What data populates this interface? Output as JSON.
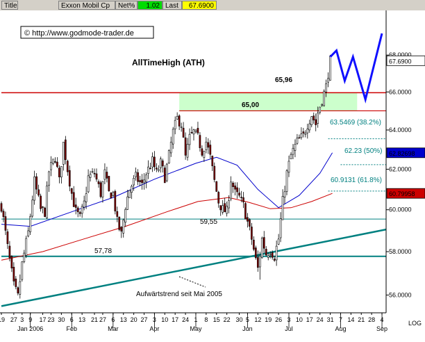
{
  "header": {
    "title_btn": "Title",
    "name": "Exxon Mobil Cp",
    "net_label": "Net%",
    "net_value": "1.02",
    "last_label": "Last",
    "last_value": "67.6900"
  },
  "copyright": "© http://www.godmode-trader.de",
  "annotations": {
    "ath": "AllTimeHigh (ATH)",
    "level_6596": "65,96",
    "level_6500": "65,00",
    "level_5955": "59,55",
    "level_5778": "57,78",
    "trend": "Aufwärtstrend seit Mai 2005",
    "fib382": "63.5469 (38.2%)",
    "fib50": "62.23 (50%)",
    "fib618": "60.9131 (61.8%)"
  },
  "price_tags": {
    "last": "67.6900",
    "blue_ma": "62.82698",
    "red_ma": "60.79958"
  },
  "log_label": "LOG",
  "colors": {
    "candle_body": "#800000",
    "resistance": "#cc0000",
    "zone": "#ccffcc",
    "trendline": "#008080",
    "ma_blue": "#0000cc",
    "ma_red": "#cc0000",
    "projection": "#1010ff",
    "net_green": "#00dd00",
    "last_yellow": "#ffff00"
  },
  "chart_data": {
    "type": "candlestick",
    "scale": "log",
    "ylim": [
      55.2,
      70.5
    ],
    "y_ticks": [
      56,
      58,
      60,
      62,
      64,
      66,
      68
    ],
    "y_tick_labels": [
      "56.0000",
      "58.0000",
      "60.0000",
      "62.0000",
      "64.0000",
      "66.0000",
      "68.0000"
    ],
    "x_ticks": [
      {
        "label": "19",
        "d": 0
      },
      {
        "label": "27",
        "d": 6
      },
      {
        "label": "3",
        "d": 10
      },
      {
        "label": "9",
        "d": 14
      },
      {
        "label": "17",
        "d": 20
      },
      {
        "label": "23",
        "d": 24
      },
      {
        "label": "30",
        "d": 29
      },
      {
        "label": "6",
        "d": 34
      },
      {
        "label": "13",
        "d": 39
      },
      {
        "label": "21",
        "d": 45
      },
      {
        "label": "27",
        "d": 49
      },
      {
        "label": "6",
        "d": 54
      },
      {
        "label": "13",
        "d": 59
      },
      {
        "label": "20",
        "d": 64
      },
      {
        "label": "27",
        "d": 69
      },
      {
        "label": "3",
        "d": 74
      },
      {
        "label": "10",
        "d": 79
      },
      {
        "label": "17",
        "d": 84
      },
      {
        "label": "24",
        "d": 89
      },
      {
        "label": "1",
        "d": 94
      },
      {
        "label": "8",
        "d": 99
      },
      {
        "label": "15",
        "d": 104
      },
      {
        "label": "22",
        "d": 109
      },
      {
        "label": "30",
        "d": 115
      },
      {
        "label": "5",
        "d": 119
      },
      {
        "label": "12",
        "d": 124
      },
      {
        "label": "19",
        "d": 129
      },
      {
        "label": "26",
        "d": 134
      },
      {
        "label": "3",
        "d": 139
      },
      {
        "label": "10",
        "d": 144
      },
      {
        "label": "17",
        "d": 149
      },
      {
        "label": "24",
        "d": 154
      },
      {
        "label": "31",
        "d": 159
      },
      {
        "label": "7",
        "d": 164
      },
      {
        "label": "14",
        "d": 169
      },
      {
        "label": "21",
        "d": 174
      },
      {
        "label": "28",
        "d": 179
      },
      {
        "label": "4",
        "d": 184
      }
    ],
    "months": [
      {
        "label": "Jan 2006",
        "d": 14
      },
      {
        "label": "Feb",
        "d": 34
      },
      {
        "label": "Mar",
        "d": 54
      },
      {
        "label": "Apr",
        "d": 74
      },
      {
        "label": "May",
        "d": 94
      },
      {
        "label": "Jun",
        "d": 119
      },
      {
        "label": "Jul",
        "d": 139
      },
      {
        "label": "Aug",
        "d": 164
      },
      {
        "label": "Sep",
        "d": 184
      }
    ],
    "days_total": 186,
    "last_bar": 159,
    "candle_nodes": [
      [
        0,
        60.2
      ],
      [
        3,
        58.2
      ],
      [
        6,
        56.4
      ],
      [
        8,
        55.9
      ],
      [
        10,
        57.4
      ],
      [
        13,
        58.9
      ],
      [
        16,
        61.4
      ],
      [
        19,
        60.0
      ],
      [
        21,
        59.9
      ],
      [
        23,
        61.9
      ],
      [
        26,
        62.6
      ],
      [
        28,
        61.4
      ],
      [
        30,
        63.3
      ],
      [
        32,
        62.0
      ],
      [
        34,
        60.8
      ],
      [
        36,
        59.9
      ],
      [
        38,
        59.6
      ],
      [
        40,
        60.3
      ],
      [
        42,
        61.6
      ],
      [
        45,
        61.8
      ],
      [
        48,
        60.8
      ],
      [
        50,
        61.8
      ],
      [
        52,
        60.8
      ],
      [
        54,
        60.8
      ],
      [
        56,
        59.4
      ],
      [
        58,
        58.8
      ],
      [
        60,
        60.2
      ],
      [
        62,
        61.0
      ],
      [
        65,
        61.6
      ],
      [
        68,
        61.2
      ],
      [
        70,
        61.8
      ],
      [
        73,
        62.4
      ],
      [
        75,
        61.8
      ],
      [
        77,
        62.3
      ],
      [
        79,
        61.6
      ],
      [
        81,
        62.7
      ],
      [
        83,
        63.9
      ],
      [
        85,
        64.6
      ],
      [
        87,
        64.3
      ],
      [
        89,
        62.6
      ],
      [
        91,
        63.6
      ],
      [
        93,
        63.9
      ],
      [
        95,
        63.6
      ],
      [
        97,
        62.9
      ],
      [
        99,
        63.4
      ],
      [
        101,
        62.6
      ],
      [
        103,
        61.4
      ],
      [
        105,
        60.4
      ],
      [
        107,
        60.0
      ],
      [
        109,
        59.9
      ],
      [
        111,
        61.5
      ],
      [
        113,
        60.8
      ],
      [
        115,
        60.6
      ],
      [
        117,
        60.2
      ],
      [
        119,
        59.4
      ],
      [
        121,
        58.6
      ],
      [
        123,
        57.6
      ],
      [
        124,
        57.2
      ],
      [
        126,
        58.6
      ],
      [
        128,
        57.9
      ],
      [
        130,
        58.1
      ],
      [
        132,
        57.8
      ],
      [
        134,
        58.6
      ],
      [
        136,
        60.4
      ],
      [
        138,
        61.8
      ],
      [
        140,
        62.7
      ],
      [
        143,
        63.4
      ],
      [
        146,
        63.7
      ],
      [
        148,
        64.3
      ],
      [
        150,
        64.8
      ],
      [
        152,
        64.3
      ],
      [
        153,
        64.9
      ],
      [
        155,
        65.6
      ],
      [
        157,
        66.3
      ],
      [
        159,
        67.7
      ]
    ],
    "fixed_dips": [
      [
        125,
        56.7
      ]
    ],
    "ma_blue": [
      [
        0,
        59.3
      ],
      [
        14,
        59.2
      ],
      [
        34,
        59.9
      ],
      [
        54,
        60.6
      ],
      [
        74,
        61.5
      ],
      [
        94,
        62.3
      ],
      [
        104,
        62.6
      ],
      [
        114,
        62.2
      ],
      [
        124,
        61.0
      ],
      [
        134,
        60.1
      ],
      [
        144,
        60.7
      ],
      [
        154,
        61.8
      ],
      [
        160,
        62.83
      ]
    ],
    "ma_red": [
      [
        0,
        57.6
      ],
      [
        20,
        58.0
      ],
      [
        40,
        58.6
      ],
      [
        60,
        59.2
      ],
      [
        80,
        59.9
      ],
      [
        95,
        60.4
      ],
      [
        110,
        60.6
      ],
      [
        120,
        60.35
      ],
      [
        130,
        60.05
      ],
      [
        140,
        60.1
      ],
      [
        150,
        60.4
      ],
      [
        160,
        60.8
      ]
    ],
    "projection": [
      [
        159,
        67.9
      ],
      [
        162,
        68.25
      ],
      [
        166,
        66.6
      ],
      [
        170,
        67.9
      ],
      [
        176,
        65.6
      ],
      [
        184,
        69.2
      ]
    ],
    "trendline": [
      [
        0,
        55.5
      ],
      [
        186,
        59.05
      ]
    ],
    "levels": {
      "ath": 65.96,
      "ath_line_value": 65.96,
      "zone": [
        65.0,
        65.96
      ],
      "support1": 59.55,
      "support2": 57.78
    },
    "fib": [
      63.5469,
      62.23,
      60.9131
    ]
  }
}
